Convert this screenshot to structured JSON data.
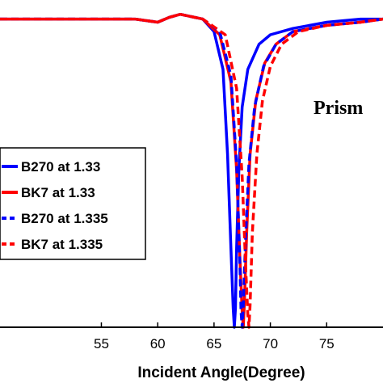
{
  "chart_data": {
    "type": "line",
    "xlabel": "Incident Angle(Degree)",
    "xlim": [
      46,
      80
    ],
    "ylim": [
      0,
      1.02
    ],
    "xticks": [
      55,
      60,
      65,
      70,
      75
    ],
    "annotation": "Prism",
    "legend_position": "left",
    "series": [
      {
        "name": "B270 at 1.33",
        "color": "#0000ff",
        "dash": "solid",
        "x": [
          46,
          58,
          60,
          61,
          62,
          64,
          65,
          65.8,
          66.2,
          66.5,
          66.7,
          66.8,
          66.9,
          67.0,
          67.2,
          67.5,
          68,
          69,
          70,
          72,
          75,
          78,
          80
        ],
        "y": [
          0.98,
          0.98,
          0.97,
          0.985,
          0.995,
          0.98,
          0.94,
          0.82,
          0.55,
          0.25,
          0.06,
          0.0,
          0.06,
          0.25,
          0.5,
          0.7,
          0.82,
          0.9,
          0.93,
          0.95,
          0.97,
          0.98,
          0.98
        ]
      },
      {
        "name": "BK7 at 1.33",
        "color": "#ff0000",
        "dash": "solid",
        "x": [
          46,
          58,
          60,
          61,
          62,
          64,
          65.5,
          66.5,
          67,
          67.3,
          67.5,
          67.6,
          67.7,
          67.9,
          68.2,
          68.7,
          69.5,
          70.5,
          72,
          75,
          78,
          80
        ],
        "y": [
          0.98,
          0.98,
          0.97,
          0.985,
          0.995,
          0.98,
          0.93,
          0.78,
          0.5,
          0.22,
          0.05,
          0.0,
          0.08,
          0.3,
          0.55,
          0.72,
          0.84,
          0.9,
          0.94,
          0.96,
          0.97,
          0.98
        ]
      },
      {
        "name": "B270 at 1.335",
        "color": "#0000ff",
        "dash": "dashed",
        "x": [
          46,
          58,
          60,
          61,
          62,
          64,
          65.5,
          66.5,
          67,
          67.3,
          67.4,
          67.5,
          67.6,
          67.8,
          68.1,
          68.6,
          69.4,
          70.5,
          72,
          75,
          78,
          80
        ],
        "y": [
          0.98,
          0.98,
          0.97,
          0.985,
          0.995,
          0.98,
          0.94,
          0.8,
          0.52,
          0.2,
          0.05,
          0.0,
          0.07,
          0.28,
          0.52,
          0.7,
          0.83,
          0.9,
          0.94,
          0.96,
          0.97,
          0.98
        ]
      },
      {
        "name": "BK7 at 1.335",
        "color": "#ff0000",
        "dash": "dashed",
        "x": [
          46,
          58,
          60,
          61,
          62,
          64,
          66,
          67,
          67.5,
          67.8,
          68.0,
          68.1,
          68.2,
          68.4,
          68.8,
          69.3,
          70,
          71,
          72.5,
          75,
          78,
          80
        ],
        "y": [
          0.98,
          0.98,
          0.97,
          0.985,
          0.995,
          0.98,
          0.93,
          0.76,
          0.48,
          0.2,
          0.04,
          0.0,
          0.07,
          0.3,
          0.55,
          0.72,
          0.83,
          0.9,
          0.94,
          0.96,
          0.97,
          0.98
        ]
      }
    ]
  }
}
